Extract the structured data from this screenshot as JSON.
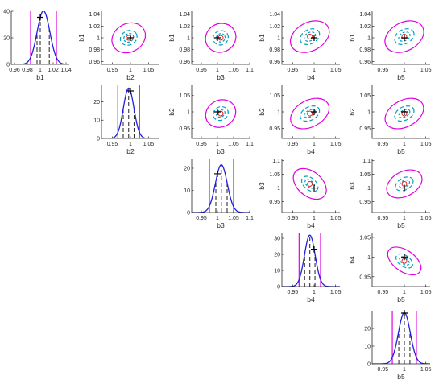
{
  "chart_data": [
    {
      "type": "line",
      "row": 1,
      "col": 1,
      "kind": "marginal",
      "xlabel": "b1",
      "xlim": [
        0.955,
        1.045
      ],
      "ylim": [
        0,
        40
      ],
      "xticks": [
        0.96,
        0.98,
        1,
        1.02,
        1.04
      ],
      "xtick_labels": [
        "0.96",
        "0.98",
        "1",
        "1.02",
        "1.04"
      ],
      "yticks": [
        0,
        20,
        40
      ],
      "ytick_labels": [
        "0",
        "20",
        "40"
      ],
      "mean": 1.005,
      "sd": 0.0099,
      "dashed_lines": [
        0.995,
        1.0,
        1.014
      ],
      "magenta_lines": [
        0.985,
        1.025
      ],
      "true_value": 1.0
    },
    {
      "type": "scatter",
      "row": 1,
      "col": 2,
      "kind": "pair",
      "xlabel": "b2",
      "ylabel": "b1",
      "xlim": [
        0.92,
        1.08
      ],
      "ylim": [
        0.955,
        1.045
      ],
      "xticks": [
        0.95,
        1,
        1.05
      ],
      "xtick_labels": [
        "0.95",
        "1",
        "1.05"
      ],
      "yticks": [
        0.96,
        0.98,
        1,
        1.02,
        1.04
      ],
      "ytick_labels": [
        "0.96",
        "0.98",
        "1",
        "1.02",
        "1.04"
      ],
      "estimate": [
        0.995,
        1.0
      ],
      "true_value": [
        1.0,
        1.0
      ],
      "ellipse_rx": [
        0.014,
        0.024,
        0.048
      ],
      "ellipse_ry": [
        0.007,
        0.012,
        0.024
      ],
      "ellipse_tilt": 28
    },
    {
      "type": "scatter",
      "row": 1,
      "col": 3,
      "kind": "pair",
      "xlabel": "b3",
      "ylabel": "b1",
      "xlim": [
        0.92,
        1.1
      ],
      "ylim": [
        0.955,
        1.045
      ],
      "xticks": [
        0.95,
        1,
        1.05,
        1.1
      ],
      "xtick_labels": [
        "0.95",
        "1",
        "1.05",
        "1.1"
      ],
      "yticks": [
        0.96,
        0.98,
        1,
        1.02,
        1.04
      ],
      "ytick_labels": [
        "0.96",
        "0.98",
        "1",
        "1.02",
        "1.04"
      ],
      "estimate": [
        1.01,
        1.0
      ],
      "true_value": [
        1.0,
        1.0
      ],
      "ellipse_rx": [
        0.014,
        0.024,
        0.048
      ],
      "ellipse_ry": [
        0.007,
        0.012,
        0.024
      ],
      "ellipse_tilt": 28
    },
    {
      "type": "scatter",
      "row": 1,
      "col": 4,
      "kind": "pair",
      "xlabel": "b4",
      "ylabel": "b1",
      "xlim": [
        0.925,
        1.06
      ],
      "ylim": [
        0.955,
        1.045
      ],
      "xticks": [
        0.95,
        1,
        1.05
      ],
      "xtick_labels": [
        "0.95",
        "1",
        "1.05"
      ],
      "yticks": [
        0.96,
        0.98,
        1,
        1.02,
        1.04
      ],
      "ytick_labels": [
        "0.96",
        "0.98",
        "1",
        "1.02",
        "1.04"
      ],
      "estimate": [
        0.99,
        1.002
      ],
      "true_value": [
        1.0,
        1.0
      ],
      "ellipse_rx": [
        0.014,
        0.024,
        0.048
      ],
      "ellipse_ry": [
        0.007,
        0.012,
        0.024
      ],
      "ellipse_tilt": 28
    },
    {
      "type": "scatter",
      "row": 1,
      "col": 5,
      "kind": "pair",
      "xlabel": "b5",
      "ylabel": "b1",
      "xlim": [
        0.925,
        1.06
      ],
      "ylim": [
        0.955,
        1.045
      ],
      "xticks": [
        0.95,
        1,
        1.05
      ],
      "xtick_labels": [
        "0.95",
        "1",
        "1.05"
      ],
      "yticks": [
        0.96,
        0.98,
        1,
        1.02,
        1.04
      ],
      "ytick_labels": [
        "0.96",
        "0.98",
        "1",
        "1.02",
        "1.04"
      ],
      "estimate": [
        1.0,
        1.002
      ],
      "true_value": [
        1.0,
        1.0
      ],
      "ellipse_rx": [
        0.014,
        0.024,
        0.048
      ],
      "ellipse_ry": [
        0.007,
        0.012,
        0.024
      ],
      "ellipse_tilt": 28
    },
    {
      "type": "line",
      "row": 2,
      "col": 2,
      "kind": "marginal",
      "xlabel": "b2",
      "xlim": [
        0.92,
        1.08
      ],
      "ylim": [
        0,
        29
      ],
      "xticks": [
        0.95,
        1,
        1.05
      ],
      "xtick_labels": [
        "0.95",
        "1",
        "1.05"
      ],
      "yticks": [
        0,
        10,
        20
      ],
      "ytick_labels": [
        "0",
        "10",
        "20"
      ],
      "mean": 0.995,
      "sd": 0.0145,
      "dashed_lines": [
        0.98,
        0.995,
        1.01
      ],
      "magenta_lines": [
        0.965,
        1.025
      ],
      "true_value": 1.0
    },
    {
      "type": "scatter",
      "row": 2,
      "col": 3,
      "kind": "pair",
      "xlabel": "b3",
      "ylabel": "b2",
      "xlim": [
        0.92,
        1.1
      ],
      "ylim": [
        0.92,
        1.08
      ],
      "xticks": [
        0.95,
        1,
        1.05,
        1.1
      ],
      "xtick_labels": [
        "0.95",
        "1",
        "1.05",
        "1.1"
      ],
      "yticks": [
        0.95,
        1,
        1.05
      ],
      "ytick_labels": [
        "0.95",
        "1",
        "1.05"
      ],
      "estimate": [
        1.01,
        0.995
      ],
      "true_value": [
        1.0,
        1.0
      ],
      "ellipse_rx": [
        0.014,
        0.024,
        0.048
      ],
      "ellipse_ry": [
        0.01,
        0.02,
        0.04
      ],
      "ellipse_tilt": 28
    },
    {
      "type": "scatter",
      "row": 2,
      "col": 4,
      "kind": "pair",
      "xlabel": "b4",
      "ylabel": "b2",
      "xlim": [
        0.925,
        1.06
      ],
      "ylim": [
        0.92,
        1.08
      ],
      "xticks": [
        0.95,
        1,
        1.05
      ],
      "xtick_labels": [
        "0.95",
        "1",
        "1.05"
      ],
      "yticks": [
        0.95,
        1,
        1.05
      ],
      "ytick_labels": [
        "0.95",
        "1",
        "1.05"
      ],
      "estimate": [
        0.99,
        0.995
      ],
      "true_value": [
        1.0,
        1.0
      ],
      "ellipse_rx": [
        0.014,
        0.024,
        0.048
      ],
      "ellipse_ry": [
        0.01,
        0.02,
        0.04
      ],
      "ellipse_tilt": 28
    },
    {
      "type": "scatter",
      "row": 2,
      "col": 5,
      "kind": "pair",
      "xlabel": "b5",
      "ylabel": "b2",
      "xlim": [
        0.925,
        1.06
      ],
      "ylim": [
        0.92,
        1.08
      ],
      "xticks": [
        0.95,
        1,
        1.05
      ],
      "xtick_labels": [
        "0.95",
        "1",
        "1.05"
      ],
      "yticks": [
        0.95,
        1,
        1.05
      ],
      "ytick_labels": [
        "0.95",
        "1",
        "1.05"
      ],
      "estimate": [
        1.0,
        0.995
      ],
      "true_value": [
        1.0,
        1.0
      ],
      "ellipse_rx": [
        0.014,
        0.024,
        0.048
      ],
      "ellipse_ry": [
        0.01,
        0.02,
        0.04
      ],
      "ellipse_tilt": 28
    },
    {
      "type": "line",
      "row": 3,
      "col": 3,
      "kind": "marginal",
      "xlabel": "b3",
      "xlim": [
        0.92,
        1.1
      ],
      "ylim": [
        0,
        24
      ],
      "xticks": [
        0.95,
        1,
        1.05,
        1.1
      ],
      "xtick_labels": [
        "0.95",
        "1",
        "1.05",
        "1.1"
      ],
      "yticks": [
        0,
        10,
        20
      ],
      "ytick_labels": [
        "0",
        "10",
        "20"
      ],
      "mean": 1.012,
      "sd": 0.0185,
      "dashed_lines": [
        0.995,
        1.012,
        1.03
      ],
      "magenta_lines": [
        0.975,
        1.05
      ],
      "true_value": 1.0
    },
    {
      "type": "scatter",
      "row": 3,
      "col": 4,
      "kind": "pair",
      "xlabel": "b4",
      "ylabel": "b3",
      "xlim": [
        0.925,
        1.06
      ],
      "ylim": [
        0.91,
        1.105
      ],
      "xticks": [
        0.95,
        1,
        1.05
      ],
      "xtick_labels": [
        "0.95",
        "1",
        "1.05"
      ],
      "yticks": [
        0.95,
        1,
        1.05,
        1.1
      ],
      "ytick_labels": [
        "0.95",
        "1",
        "1.05",
        "1.1"
      ],
      "estimate": [
        0.99,
        1.015
      ],
      "true_value": [
        1.0,
        1.0
      ],
      "ellipse_rx": [
        0.013,
        0.022,
        0.044
      ],
      "ellipse_ry": [
        0.012,
        0.022,
        0.045
      ],
      "ellipse_tilt": -40
    },
    {
      "type": "scatter",
      "row": 3,
      "col": 5,
      "kind": "pair",
      "xlabel": "b5",
      "ylabel": "b3",
      "xlim": [
        0.925,
        1.06
      ],
      "ylim": [
        0.91,
        1.105
      ],
      "xticks": [
        0.95,
        1,
        1.05
      ],
      "xtick_labels": [
        "0.95",
        "1",
        "1.05"
      ],
      "yticks": [
        0.95,
        1,
        1.05,
        1.1
      ],
      "ytick_labels": [
        "0.95",
        "1",
        "1.05",
        "1.1"
      ],
      "estimate": [
        1.0,
        1.015
      ],
      "true_value": [
        1.0,
        1.0
      ],
      "ellipse_rx": [
        0.013,
        0.022,
        0.044
      ],
      "ellipse_ry": [
        0.012,
        0.022,
        0.045
      ],
      "ellipse_tilt": 28
    },
    {
      "type": "line",
      "row": 4,
      "col": 4,
      "kind": "marginal",
      "xlabel": "b4",
      "xlim": [
        0.925,
        1.06
      ],
      "ylim": [
        0,
        33
      ],
      "xticks": [
        0.95,
        1,
        1.05
      ],
      "xtick_labels": [
        "0.95",
        "1",
        "1.05"
      ],
      "yticks": [
        0,
        10,
        20,
        30
      ],
      "ytick_labels": [
        "0",
        "10",
        "20",
        "30"
      ],
      "mean": 0.99,
      "sd": 0.0125,
      "dashed_lines": [
        0.978,
        0.99,
        1.002
      ],
      "magenta_lines": [
        0.965,
        1.015
      ],
      "true_value": 1.0
    },
    {
      "type": "scatter",
      "row": 4,
      "col": 5,
      "kind": "pair",
      "xlabel": "b5",
      "ylabel": "b4",
      "xlim": [
        0.925,
        1.06
      ],
      "ylim": [
        0.925,
        1.06
      ],
      "xticks": [
        0.95,
        1,
        1.05
      ],
      "xtick_labels": [
        "0.95",
        "1",
        "1.05"
      ],
      "yticks": [
        0.95,
        1,
        1.05
      ],
      "ytick_labels": [
        "0.95",
        "1",
        "1.05"
      ],
      "estimate": [
        1.0,
        0.99
      ],
      "true_value": [
        1.0,
        1.0
      ],
      "ellipse_rx": [
        0.013,
        0.022,
        0.044
      ],
      "ellipse_ry": [
        0.008,
        0.014,
        0.027
      ],
      "ellipse_tilt": -35
    },
    {
      "type": "line",
      "row": 5,
      "col": 5,
      "kind": "marginal",
      "xlabel": "b5",
      "xlim": [
        0.925,
        1.06
      ],
      "ylim": [
        0,
        30
      ],
      "xticks": [
        0.95,
        1,
        1.05
      ],
      "xtick_labels": [
        "0.95",
        "1",
        "1.05"
      ],
      "yticks": [
        0,
        10,
        20
      ],
      "ytick_labels": [
        "0",
        "10",
        "20"
      ],
      "mean": 1.0,
      "sd": 0.0138,
      "dashed_lines": [
        0.987,
        1.0,
        1.013
      ],
      "magenta_lines": [
        0.972,
        1.028
      ],
      "true_value": 1.0
    }
  ],
  "colors": {
    "density_curve": "#1f1fdd",
    "magenta_bounds": "#e000e0",
    "dashed_lines": "#333333",
    "ellipse_inner": "#00a0c0",
    "ellipse_outer": "#e000e0",
    "estimate_marker": "#e02020",
    "true_marker": "#000000"
  }
}
